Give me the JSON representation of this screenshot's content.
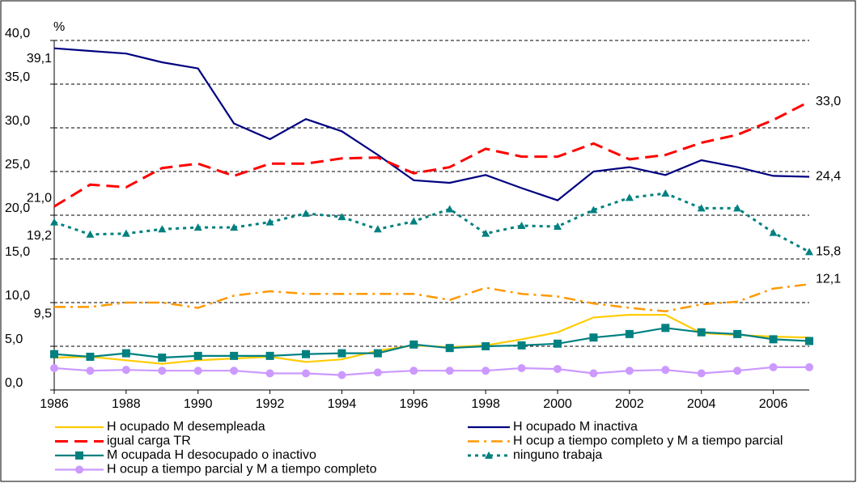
{
  "chart_data": {
    "type": "line",
    "y_label": "%",
    "x": [
      1986,
      1987,
      1988,
      1989,
      1990,
      1991,
      1992,
      1993,
      1994,
      1995,
      1996,
      1997,
      1998,
      1999,
      2000,
      2001,
      2002,
      2003,
      2004,
      2005,
      2006,
      2007
    ],
    "xlim": [
      1986,
      2007
    ],
    "xticks": [
      1986,
      1988,
      1990,
      1992,
      1994,
      1996,
      1998,
      2000,
      2002,
      2004,
      2006
    ],
    "ylim": [
      0,
      40
    ],
    "yticks": [
      {
        "value": 0,
        "label": "0,0"
      },
      {
        "value": 5,
        "label": "5,0"
      },
      {
        "value": 10,
        "label": "10,0"
      },
      {
        "value": 15,
        "label": "15,0"
      },
      {
        "value": 20,
        "label": "20,0"
      },
      {
        "value": 25,
        "label": "25,0"
      },
      {
        "value": 30,
        "label": "30,0"
      },
      {
        "value": 35,
        "label": "35,0"
      },
      {
        "value": 40,
        "label": "40,0"
      }
    ],
    "grid": true,
    "legend": "bottom",
    "series": [
      {
        "name": "H ocupado M desempleada",
        "color": "#FFCC00",
        "dash": "solid",
        "marker": "none",
        "values": [
          3.7,
          3.8,
          3.4,
          3.0,
          3.4,
          3.6,
          3.8,
          3.2,
          3.5,
          4.5,
          5.1,
          4.9,
          5.1,
          5.8,
          6.6,
          8.3,
          8.6,
          8.6,
          6.5,
          6.3,
          6.1,
          6.0
        ]
      },
      {
        "name": "H ocupado M inactiva",
        "color": "#000080",
        "dash": "solid",
        "marker": "none",
        "values": [
          39.1,
          38.8,
          38.5,
          37.5,
          36.8,
          30.5,
          28.7,
          31.0,
          29.6,
          26.9,
          24.0,
          23.7,
          24.6,
          23.1,
          21.7,
          25.0,
          25.5,
          24.6,
          26.3,
          25.5,
          24.5,
          24.4
        ],
        "value_labels": [
          "39,1",
          null,
          null,
          null,
          null,
          null,
          null,
          null,
          null,
          null,
          null,
          null,
          null,
          null,
          null,
          null,
          null,
          null,
          null,
          null,
          null,
          "24,4"
        ]
      },
      {
        "name": "igual carga TR",
        "color": "#FF0000",
        "dash": "dashed",
        "marker": "none",
        "values": [
          21.0,
          23.5,
          23.2,
          25.4,
          25.9,
          24.5,
          25.9,
          25.9,
          26.5,
          26.6,
          24.8,
          25.5,
          27.6,
          26.7,
          26.7,
          28.2,
          26.4,
          26.9,
          28.3,
          29.2,
          30.9,
          33.0
        ],
        "value_labels": [
          "21,0",
          null,
          null,
          null,
          null,
          null,
          null,
          null,
          null,
          null,
          null,
          null,
          null,
          null,
          null,
          null,
          null,
          null,
          null,
          null,
          null,
          "33,0"
        ]
      },
      {
        "name": "H ocup a tiempo completo y M a tiempo parcial",
        "color": "#FF9900",
        "dash": "dashdot",
        "marker": "none",
        "values": [
          9.5,
          9.5,
          10.0,
          10.0,
          9.4,
          10.8,
          11.3,
          11.0,
          11.0,
          11.0,
          11.0,
          10.3,
          11.7,
          11.0,
          10.7,
          9.9,
          9.4,
          9.0,
          9.8,
          10.1,
          11.6,
          12.1
        ],
        "value_labels": [
          "9,5",
          null,
          null,
          null,
          null,
          null,
          null,
          null,
          null,
          null,
          null,
          null,
          null,
          null,
          null,
          null,
          null,
          null,
          null,
          null,
          null,
          "12,1"
        ]
      },
      {
        "name": "M ocupada H desocupado o inactivo",
        "color": "#008080",
        "dash": "solid",
        "marker": "square",
        "values": [
          4.1,
          3.8,
          4.2,
          3.7,
          3.9,
          3.9,
          3.9,
          4.1,
          4.2,
          4.2,
          5.2,
          4.8,
          5.0,
          5.1,
          5.3,
          6.0,
          6.4,
          7.1,
          6.6,
          6.4,
          5.8,
          5.6
        ]
      },
      {
        "name": "ninguno trabaja",
        "color": "#008080",
        "dash": "dotted",
        "marker": "triangle",
        "values": [
          19.2,
          17.8,
          17.9,
          18.4,
          18.6,
          18.6,
          19.2,
          20.2,
          19.8,
          18.4,
          19.3,
          20.7,
          17.9,
          18.8,
          18.7,
          20.6,
          22.0,
          22.5,
          20.8,
          20.8,
          18.0,
          15.8
        ],
        "value_labels": [
          "19,2",
          null,
          null,
          null,
          null,
          null,
          null,
          null,
          null,
          null,
          null,
          null,
          null,
          null,
          null,
          null,
          null,
          null,
          null,
          null,
          null,
          "15,8"
        ]
      },
      {
        "name": "H ocup a tiempo parcial y M a tiempo completo",
        "color": "#CC99FF",
        "dash": "solid",
        "marker": "circle",
        "values": [
          2.5,
          2.2,
          2.3,
          2.2,
          2.2,
          2.2,
          1.9,
          1.9,
          1.7,
          2.0,
          2.2,
          2.2,
          2.2,
          2.5,
          2.4,
          1.9,
          2.2,
          2.3,
          1.9,
          2.2,
          2.6,
          2.6
        ]
      }
    ]
  }
}
